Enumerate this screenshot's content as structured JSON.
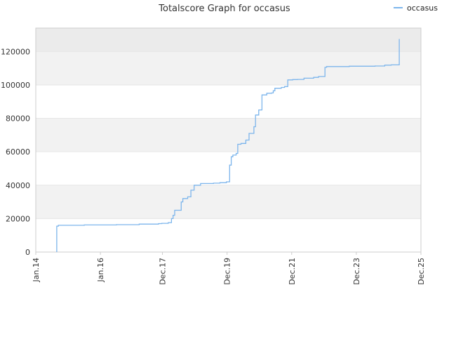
{
  "chart_data": {
    "type": "line",
    "title": "Totalscore Graph for occasus",
    "legend": {
      "placement": "top-right",
      "entries": [
        "occasus"
      ]
    },
    "grid": true,
    "colors": {
      "line": "#7cb5ec",
      "band_dark": "#f2f2f2",
      "band_light": "#ffffff",
      "band_top": "#ebebeb",
      "axis": "#cccccc"
    },
    "xlabel": "",
    "ylabel": "",
    "x_ticks": [
      {
        "label": "Jan.14",
        "value": 2014.0
      },
      {
        "label": "Jan.16",
        "value": 2016.0
      },
      {
        "label": "Dec.17",
        "value": 2017.92
      },
      {
        "label": "Dec.19",
        "value": 2019.92
      },
      {
        "label": "Dec.21",
        "value": 2021.92
      },
      {
        "label": "Dec.23",
        "value": 2023.92
      },
      {
        "label": "Dec.25",
        "value": 2025.92
      }
    ],
    "y_ticks": [
      0,
      20000,
      40000,
      60000,
      80000,
      100000,
      120000
    ],
    "xlim": [
      2014.0,
      2025.92
    ],
    "ylim": [
      0,
      134000
    ],
    "series": [
      {
        "name": "occasus",
        "x": [
          2014.65,
          2014.65,
          2014.7,
          2014.75,
          2015.5,
          2016.5,
          2017.2,
          2017.7,
          2017.8,
          2017.9,
          2018.0,
          2018.1,
          2018.2,
          2018.25,
          2018.3,
          2018.5,
          2018.55,
          2018.7,
          2018.8,
          2018.9,
          2019.1,
          2019.5,
          2019.7,
          2019.9,
          2020.0,
          2020.05,
          2020.1,
          2020.2,
          2020.25,
          2020.35,
          2020.5,
          2020.6,
          2020.75,
          2020.8,
          2020.9,
          2021.0,
          2021.15,
          2021.3,
          2021.35,
          2021.4,
          2021.6,
          2021.7,
          2021.8,
          2021.95,
          2022.1,
          2022.3,
          2022.6,
          2022.75,
          2022.95,
          2023.0,
          2023.3,
          2023.7,
          2024.0,
          2024.5,
          2024.8,
          2025.0,
          2025.25,
          2025.25
        ],
        "y": [
          0,
          15500,
          16000,
          16000,
          16200,
          16400,
          16700,
          16700,
          17000,
          17200,
          17200,
          17600,
          20000,
          22000,
          25000,
          30000,
          32000,
          33000,
          37000,
          40000,
          41000,
          41200,
          41500,
          42000,
          52000,
          57000,
          58000,
          59000,
          64500,
          65000,
          67000,
          71000,
          75000,
          82000,
          85000,
          94000,
          95000,
          95200,
          96500,
          98000,
          98500,
          99000,
          103000,
          103200,
          103300,
          104000,
          104500,
          105000,
          110500,
          111000,
          111000,
          111200,
          111200,
          111300,
          111800,
          112000,
          112500,
          127500
        ]
      }
    ]
  }
}
